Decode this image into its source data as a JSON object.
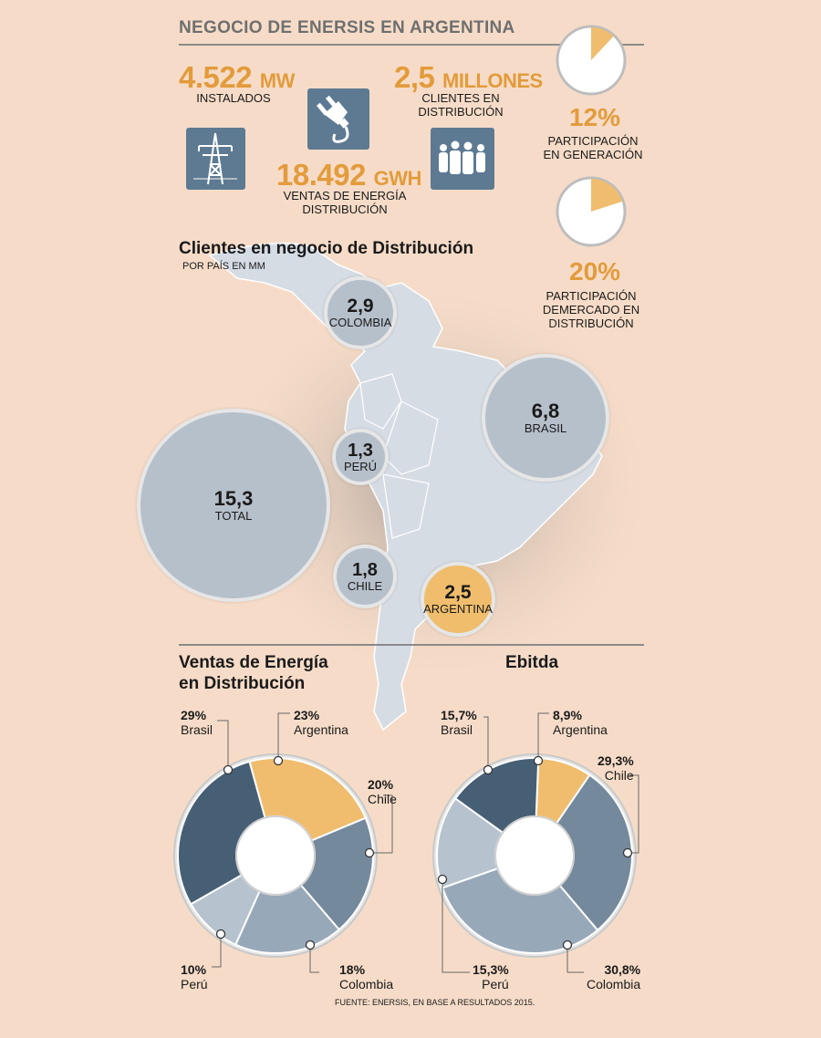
{
  "header": {
    "title": "NEGOCIO DE ENERSIS EN ARGENTINA"
  },
  "stats": {
    "installed": {
      "value": "4.522",
      "unit": "MW",
      "label": "INSTALADOS"
    },
    "clients": {
      "value": "2,5",
      "unit": "MILLONES",
      "label": "CLIENTES EN DISTRIBUCIÓN"
    },
    "sales": {
      "value": "18.492",
      "unit": "GWH",
      "label1": "VENTAS DE ENERGÍA",
      "label2": "DISTRIBUCIÓN"
    },
    "gen_share": {
      "value": "12%",
      "label1": "PARTICIPACIÓN",
      "label2": "EN GENERACIÓN",
      "fraction": 0.12
    },
    "dist_share": {
      "value": "20%",
      "label1": "PARTICIPACIÓN",
      "label2": "DEMERCADO EN",
      "label3": "DISTRIBUCIÓN",
      "fraction": 0.2
    }
  },
  "icons": [
    "power-tower-icon",
    "power-plug-icon",
    "people-icon"
  ],
  "colors": {
    "accent": "#e39b3b",
    "navy": "#475f75",
    "steel": "#75899d",
    "grey_blue": "#97a8b9",
    "light_blue": "#b6c2ce",
    "gold": "#f0bd6e"
  },
  "clients_section": {
    "title": "Clientes en negocio de Distribución",
    "subtitle": "POR PAÍS EN MM"
  },
  "chart_data": [
    {
      "type": "bubble",
      "title": "Clientes en negocio de Distribución",
      "subtitle": "POR PAÍS EN MM",
      "points": [
        {
          "label": "COLOMBIA",
          "display": "2,9",
          "value": 2.9
        },
        {
          "label": "BRASIL",
          "display": "6,8",
          "value": 6.8
        },
        {
          "label": "PERÚ",
          "display": "1,3",
          "value": 1.3
        },
        {
          "label": "TOTAL",
          "display": "15,3",
          "value": 15.3
        },
        {
          "label": "CHILE",
          "display": "1,8",
          "value": 1.8
        },
        {
          "label": "ARGENTINA",
          "display": "2,5",
          "value": 2.5
        }
      ]
    },
    {
      "type": "pie",
      "title": "Ventas de Energía en Distribución",
      "slices": [
        {
          "label": "Argentina",
          "display": "23%",
          "value": 23,
          "color": "#f0bd6e"
        },
        {
          "label": "Chile",
          "display": "20%",
          "value": 20,
          "color": "#75899d"
        },
        {
          "label": "Colombia",
          "display": "18%",
          "value": 18,
          "color": "#97a8b9"
        },
        {
          "label": "Perú",
          "display": "10%",
          "value": 10,
          "color": "#b6c2ce"
        },
        {
          "label": "Brasil",
          "display": "29%",
          "value": 29,
          "color": "#475f75"
        }
      ]
    },
    {
      "type": "pie",
      "title": "Ebitda",
      "slices": [
        {
          "label": "Argentina",
          "display": "8,9%",
          "value": 8.9,
          "color": "#f0bd6e"
        },
        {
          "label": "Chile",
          "display": "29,3%",
          "value": 29.3,
          "color": "#75899d"
        },
        {
          "label": "Colombia",
          "display": "30,8%",
          "value": 30.8,
          "color": "#97a8b9"
        },
        {
          "label": "Perú",
          "display": "15,3%",
          "value": 15.3,
          "color": "#b6c2ce"
        },
        {
          "label": "Brasil",
          "display": "15,7%",
          "value": 15.7,
          "color": "#475f75"
        }
      ]
    }
  ],
  "ventas": {
    "title1": "Ventas de Energía",
    "title2": "en Distribución"
  },
  "ebitda": {
    "title": "Ebitda"
  },
  "source": "FUENTE: ENERSIS, EN BASE A RESULTADOS 2015."
}
